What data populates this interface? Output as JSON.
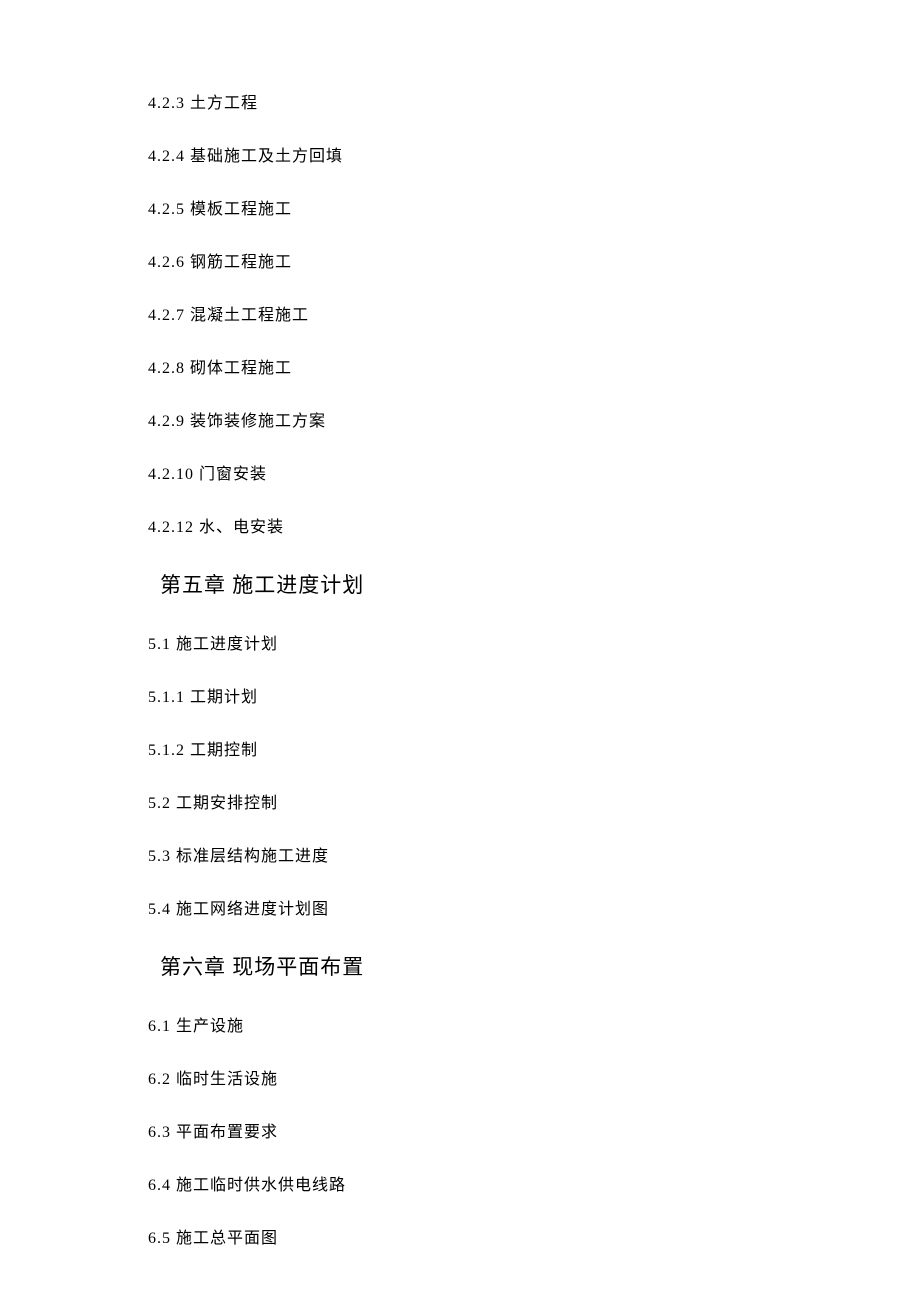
{
  "document": {
    "background_color": "#ffffff",
    "text_color": "#000000",
    "body_font": "SimSun",
    "heading_font": "KaiTi",
    "body_fontsize": 16,
    "heading_fontsize": 21
  },
  "items": [
    {
      "type": "item",
      "text": "4.2.3 土方工程"
    },
    {
      "type": "item",
      "text": "4.2.4 基础施工及土方回填"
    },
    {
      "type": "item",
      "text": "4.2.5 模板工程施工"
    },
    {
      "type": "item",
      "text": "4.2.6 钢筋工程施工"
    },
    {
      "type": "item",
      "text": "4.2.7 混凝土工程施工"
    },
    {
      "type": "item",
      "text": "4.2.8 砌体工程施工"
    },
    {
      "type": "item",
      "text": "4.2.9 装饰装修施工方案"
    },
    {
      "type": "item",
      "text": "4.2.10 门窗安装"
    },
    {
      "type": "item",
      "text": "4.2.12 水、电安装"
    },
    {
      "type": "heading",
      "text": "第五章 施工进度计划"
    },
    {
      "type": "item",
      "text": "5.1 施工进度计划"
    },
    {
      "type": "item",
      "text": "5.1.1 工期计划"
    },
    {
      "type": "item",
      "text": "5.1.2 工期控制"
    },
    {
      "type": "item",
      "text": "5.2 工期安排控制"
    },
    {
      "type": "item",
      "text": "5.3 标准层结构施工进度"
    },
    {
      "type": "item",
      "text": "5.4 施工网络进度计划图"
    },
    {
      "type": "heading",
      "text": "第六章 现场平面布置"
    },
    {
      "type": "item",
      "text": "6.1 生产设施"
    },
    {
      "type": "item",
      "text": "6.2 临时生活设施"
    },
    {
      "type": "item",
      "text": "6.3 平面布置要求"
    },
    {
      "type": "item",
      "text": "6.4 施工临时供水供电线路"
    },
    {
      "type": "item",
      "text": "6.5 施工总平面图"
    }
  ]
}
